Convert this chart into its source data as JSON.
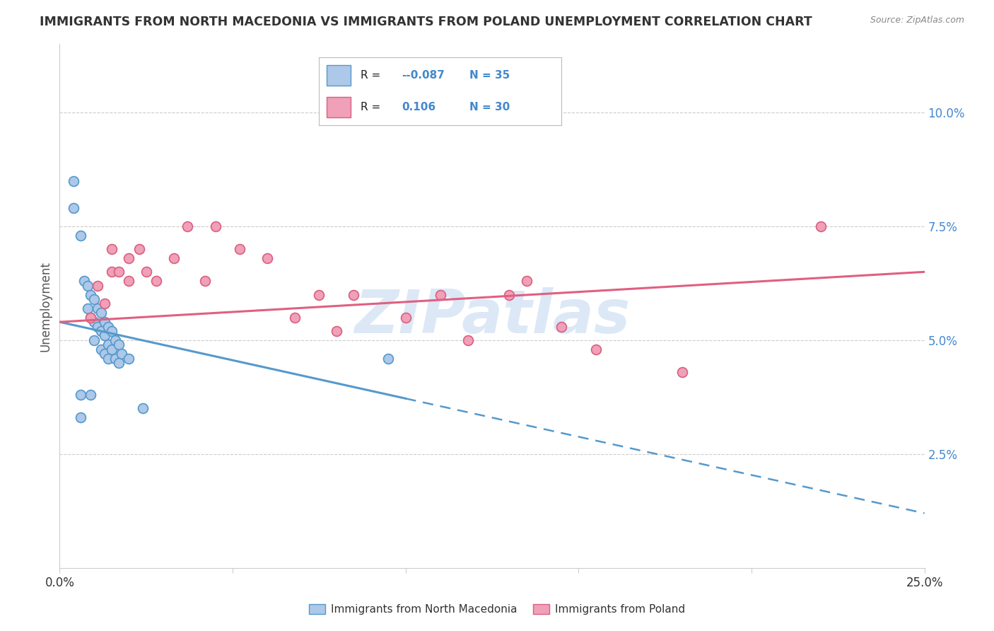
{
  "title": "IMMIGRANTS FROM NORTH MACEDONIA VS IMMIGRANTS FROM POLAND UNEMPLOYMENT CORRELATION CHART",
  "source": "Source: ZipAtlas.com",
  "ylabel": "Unemployment",
  "xlim": [
    0.0,
    0.25
  ],
  "ylim": [
    0.0,
    0.115
  ],
  "ytick_vals": [
    0.025,
    0.05,
    0.075,
    0.1
  ],
  "ytick_labels": [
    "2.5%",
    "5.0%",
    "7.5%",
    "10.0%"
  ],
  "xtick_vals": [
    0.0,
    0.05,
    0.1,
    0.15,
    0.2,
    0.25
  ],
  "xtick_labels_shown": {
    "0.0": "0.0%",
    "0.25": "25.0%"
  },
  "color_blue_fill": "#adc8e8",
  "color_blue_edge": "#5599cc",
  "color_pink_fill": "#f0a0b8",
  "color_pink_edge": "#d96080",
  "color_blue_line": "#5599cc",
  "color_pink_line": "#e06080",
  "color_grid": "#cccccc",
  "scatter_blue": [
    [
      0.004,
      0.085
    ],
    [
      0.004,
      0.079
    ],
    [
      0.006,
      0.073
    ],
    [
      0.007,
      0.063
    ],
    [
      0.008,
      0.062
    ],
    [
      0.008,
      0.057
    ],
    [
      0.009,
      0.06
    ],
    [
      0.009,
      0.055
    ],
    [
      0.01,
      0.059
    ],
    [
      0.01,
      0.054
    ],
    [
      0.01,
      0.05
    ],
    [
      0.011,
      0.057
    ],
    [
      0.011,
      0.053
    ],
    [
      0.012,
      0.056
    ],
    [
      0.012,
      0.052
    ],
    [
      0.012,
      0.048
    ],
    [
      0.013,
      0.054
    ],
    [
      0.013,
      0.051
    ],
    [
      0.013,
      0.047
    ],
    [
      0.014,
      0.053
    ],
    [
      0.014,
      0.049
    ],
    [
      0.014,
      0.046
    ],
    [
      0.015,
      0.052
    ],
    [
      0.015,
      0.048
    ],
    [
      0.016,
      0.05
    ],
    [
      0.016,
      0.046
    ],
    [
      0.017,
      0.049
    ],
    [
      0.017,
      0.045
    ],
    [
      0.018,
      0.047
    ],
    [
      0.02,
      0.046
    ],
    [
      0.006,
      0.038
    ],
    [
      0.006,
      0.033
    ],
    [
      0.009,
      0.038
    ],
    [
      0.024,
      0.035
    ],
    [
      0.095,
      0.046
    ]
  ],
  "scatter_pink": [
    [
      0.009,
      0.055
    ],
    [
      0.011,
      0.062
    ],
    [
      0.013,
      0.058
    ],
    [
      0.015,
      0.065
    ],
    [
      0.015,
      0.07
    ],
    [
      0.017,
      0.065
    ],
    [
      0.02,
      0.063
    ],
    [
      0.02,
      0.068
    ],
    [
      0.023,
      0.07
    ],
    [
      0.025,
      0.065
    ],
    [
      0.028,
      0.063
    ],
    [
      0.033,
      0.068
    ],
    [
      0.037,
      0.075
    ],
    [
      0.042,
      0.063
    ],
    [
      0.045,
      0.075
    ],
    [
      0.052,
      0.07
    ],
    [
      0.06,
      0.068
    ],
    [
      0.068,
      0.055
    ],
    [
      0.075,
      0.06
    ],
    [
      0.08,
      0.052
    ],
    [
      0.085,
      0.06
    ],
    [
      0.1,
      0.055
    ],
    [
      0.11,
      0.06
    ],
    [
      0.118,
      0.05
    ],
    [
      0.13,
      0.06
    ],
    [
      0.135,
      0.063
    ],
    [
      0.145,
      0.053
    ],
    [
      0.155,
      0.048
    ],
    [
      0.18,
      0.043
    ],
    [
      0.22,
      0.075
    ]
  ],
  "trend_blue_x0": 0.0,
  "trend_blue_y0": 0.054,
  "trend_blue_x1": 0.25,
  "trend_blue_y1": 0.012,
  "trend_blue_solid_end": 0.1,
  "trend_pink_x0": 0.0,
  "trend_pink_y0": 0.054,
  "trend_pink_x1": 0.25,
  "trend_pink_y1": 0.065,
  "watermark": "ZIPatlas",
  "watermark_color": "#c5daf0",
  "background_color": "#ffffff",
  "legend_r1": "-0.087",
  "legend_n1": "35",
  "legend_r2": "0.106",
  "legend_n2": "30",
  "color_blue_text": "#4488cc",
  "color_dark_text": "#333333",
  "color_gray_text": "#888888",
  "color_label_text": "#555555"
}
